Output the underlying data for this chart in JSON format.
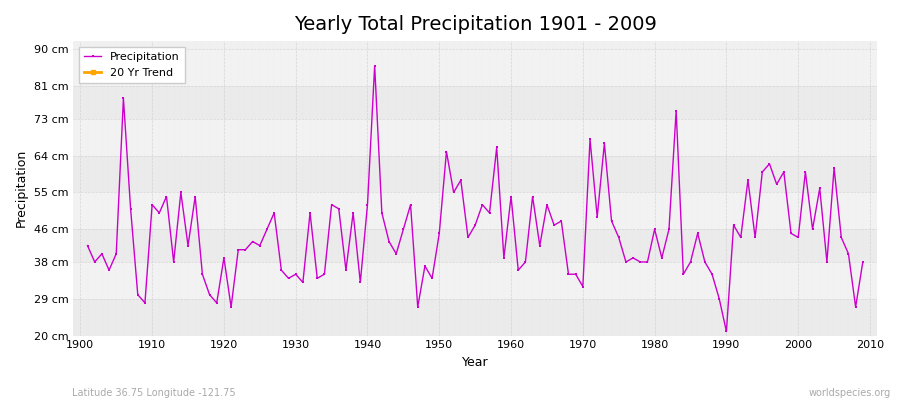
{
  "title": "Yearly Total Precipitation 1901 - 2009",
  "xlabel": "Year",
  "ylabel": "Precipitation",
  "subtitle": "Latitude 36.75 Longitude -121.75",
  "watermark": "worldspecies.org",
  "line_color": "#cc00cc",
  "trend_color": "#FFA500",
  "bg_color": "#ffffff",
  "plot_bg_color": "#f0f0f0",
  "grid_color": "#cccccc",
  "ylim": [
    20,
    92
  ],
  "yticks": [
    20,
    29,
    38,
    46,
    55,
    64,
    73,
    81,
    90
  ],
  "ytick_labels": [
    "20 cm",
    "29 cm",
    "38 cm",
    "46 cm",
    "55 cm",
    "64 cm",
    "73 cm",
    "81 cm",
    "90 cm"
  ],
  "years": [
    1901,
    1902,
    1903,
    1904,
    1905,
    1906,
    1907,
    1908,
    1909,
    1910,
    1911,
    1912,
    1913,
    1914,
    1915,
    1916,
    1917,
    1918,
    1919,
    1920,
    1921,
    1922,
    1923,
    1924,
    1925,
    1926,
    1927,
    1928,
    1929,
    1930,
    1931,
    1932,
    1933,
    1934,
    1935,
    1936,
    1937,
    1938,
    1939,
    1940,
    1941,
    1942,
    1943,
    1944,
    1945,
    1946,
    1947,
    1948,
    1949,
    1950,
    1951,
    1952,
    1953,
    1954,
    1955,
    1956,
    1957,
    1958,
    1959,
    1960,
    1961,
    1962,
    1963,
    1964,
    1965,
    1966,
    1967,
    1968,
    1969,
    1970,
    1971,
    1972,
    1973,
    1974,
    1975,
    1976,
    1977,
    1978,
    1979,
    1980,
    1981,
    1982,
    1983,
    1984,
    1985,
    1986,
    1987,
    1988,
    1989,
    1990,
    1991,
    1992,
    1993,
    1994,
    1995,
    1996,
    1997,
    1998,
    1999,
    2000,
    2001,
    2002,
    2003,
    2004,
    2005,
    2006,
    2007,
    2008,
    2009
  ],
  "precip": [
    42,
    38,
    40,
    36,
    40,
    78,
    51,
    30,
    28,
    52,
    50,
    54,
    38,
    55,
    42,
    54,
    35,
    30,
    28,
    39,
    27,
    41,
    41,
    43,
    42,
    46,
    50,
    36,
    34,
    35,
    33,
    50,
    34,
    35,
    52,
    51,
    36,
    50,
    33,
    52,
    86,
    50,
    43,
    40,
    46,
    52,
    27,
    37,
    34,
    45,
    65,
    55,
    58,
    44,
    47,
    52,
    50,
    66,
    39,
    54,
    36,
    38,
    54,
    42,
    52,
    47,
    48,
    35,
    35,
    32,
    68,
    49,
    67,
    48,
    44,
    38,
    39,
    38,
    38,
    46,
    39,
    46,
    75,
    35,
    38,
    45,
    38,
    35,
    29,
    21,
    47,
    44,
    58,
    44,
    60,
    62,
    57,
    60,
    45,
    44,
    60,
    46,
    56,
    38,
    61,
    44,
    40,
    27,
    38
  ],
  "title_fontsize": 14,
  "axis_label_fontsize": 9,
  "tick_fontsize": 8,
  "legend_fontsize": 8
}
